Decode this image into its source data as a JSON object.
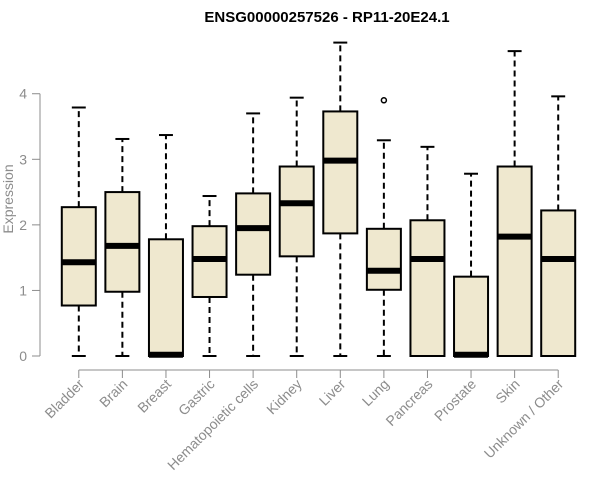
{
  "chart_data": {
    "type": "boxplot",
    "title": "ENSG00000257526 - RP11-20E24.1",
    "xlabel": "",
    "ylabel": "Expression",
    "ylim": [
      0,
      4.85
    ],
    "yticks": [
      0,
      1,
      2,
      3,
      4
    ],
    "box_fill": "#efe8cf",
    "categories": [
      "Bladder",
      "Brain",
      "Breast",
      "Gastric",
      "Hematopoietic cells",
      "Kidney",
      "Liver",
      "Lung",
      "Pancreas",
      "Prostate",
      "Skin",
      "Unknown / Other"
    ],
    "boxes": [
      {
        "min": 0,
        "q1": 0.77,
        "median": 1.43,
        "q3": 2.27,
        "max": 3.79,
        "outliers": []
      },
      {
        "min": 0,
        "q1": 0.98,
        "median": 1.68,
        "q3": 2.5,
        "max": 3.31,
        "outliers": []
      },
      {
        "min": 0,
        "q1": 0,
        "median": 0.02,
        "q3": 1.78,
        "max": 3.37,
        "outliers": []
      },
      {
        "min": 0,
        "q1": 0.9,
        "median": 1.48,
        "q3": 1.98,
        "max": 2.44,
        "outliers": []
      },
      {
        "min": 0,
        "q1": 1.24,
        "median": 1.95,
        "q3": 2.48,
        "max": 3.7,
        "outliers": []
      },
      {
        "min": 0,
        "q1": 1.52,
        "median": 2.33,
        "q3": 2.89,
        "max": 3.94,
        "outliers": []
      },
      {
        "min": 0,
        "q1": 1.87,
        "median": 2.98,
        "q3": 3.73,
        "max": 4.78,
        "outliers": []
      },
      {
        "min": 0,
        "q1": 1.01,
        "median": 1.3,
        "q3": 1.94,
        "max": 3.29,
        "outliers": [
          3.9
        ]
      },
      {
        "min": 0,
        "q1": 0,
        "median": 1.48,
        "q3": 2.07,
        "max": 3.19,
        "outliers": []
      },
      {
        "min": 0,
        "q1": 0,
        "median": 0.02,
        "q3": 1.21,
        "max": 2.78,
        "outliers": []
      },
      {
        "min": 0,
        "q1": 0,
        "median": 1.82,
        "q3": 2.89,
        "max": 4.65,
        "outliers": []
      },
      {
        "min": 0,
        "q1": 0,
        "median": 1.48,
        "q3": 2.22,
        "max": 3.96,
        "outliers": []
      }
    ]
  }
}
